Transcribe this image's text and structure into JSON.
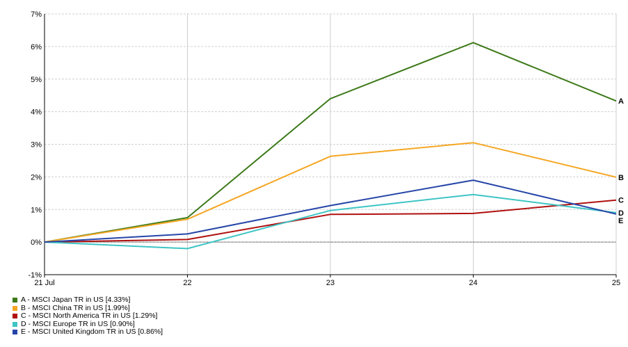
{
  "chart_data": {
    "type": "line",
    "x": [
      "21 Jul",
      "22",
      "23",
      "24",
      "25"
    ],
    "yticks": [
      "-1%",
      "0%",
      "1%",
      "2%",
      "3%",
      "4%",
      "5%",
      "6%",
      "7%"
    ],
    "ylim": [
      -1,
      7
    ],
    "grid": true,
    "legend_position": "bottom-left",
    "series": [
      {
        "id": "A",
        "name": "A - MSCI Japan TR in US [4.33%]",
        "color": "#3d7a1a",
        "values": [
          0,
          0.75,
          4.4,
          6.12,
          4.33
        ]
      },
      {
        "id": "B",
        "name": "B - MSCI China TR in US [1.99%]",
        "color": "#f5a623",
        "values": [
          0,
          0.7,
          2.63,
          3.05,
          1.99
        ]
      },
      {
        "id": "C",
        "name": "C - MSCI North America TR in US [1.29%]",
        "color": "#b01010",
        "values": [
          0,
          0.08,
          0.85,
          0.88,
          1.29
        ]
      },
      {
        "id": "D",
        "name": "D - MSCI Europe TR in US [0.90%]",
        "color": "#3ec4c4",
        "values": [
          0,
          -0.2,
          0.97,
          1.46,
          0.9
        ]
      },
      {
        "id": "E",
        "name": "E - MSCI United Kingdom TR in US [0.86%]",
        "color": "#2645a8",
        "values": [
          0,
          0.25,
          1.12,
          1.9,
          0.86
        ]
      }
    ]
  }
}
